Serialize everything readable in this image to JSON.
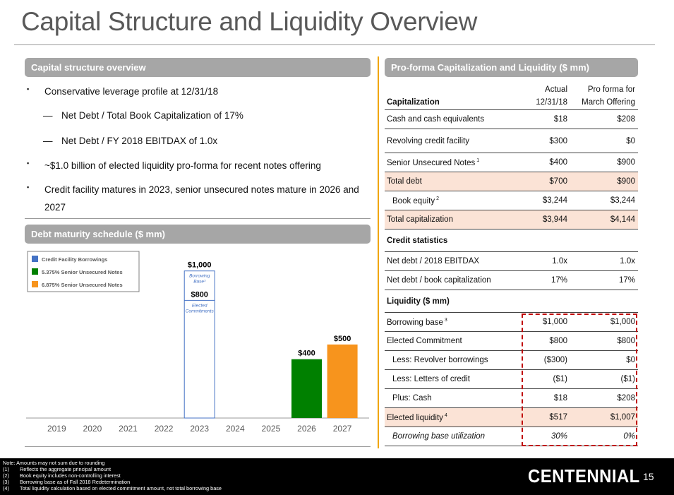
{
  "title": "Capital Structure and Liquidity Overview",
  "left": {
    "cap_header": "Capital structure overview",
    "bullets": [
      {
        "marker": "▪",
        "level": 0,
        "text": "Conservative leverage profile at 12/31/18"
      },
      {
        "marker": "—",
        "level": 1,
        "text": "Net Debt / Total Book Capitalization of 17%"
      },
      {
        "marker": "—",
        "level": 1,
        "text": "Net Debt / FY 2018 EBITDAX of 1.0x"
      },
      {
        "marker": "▪",
        "level": 0,
        "text": "~$1.0 billion of elected liquidity pro-forma for recent notes offering"
      },
      {
        "marker": "▪",
        "level": 0,
        "text": "Credit facility matures in 2023, senior unsecured notes mature in 2026 and 2027"
      }
    ],
    "debt_header": "Debt maturity schedule ($ mm)"
  },
  "chart_data": {
    "type": "bar",
    "categories": [
      "2019",
      "2020",
      "2021",
      "2022",
      "2023",
      "2024",
      "2025",
      "2026",
      "2027"
    ],
    "series": [
      {
        "name": "Credit Facility Borrowings",
        "color": "#4472c4",
        "values": [
          0,
          0,
          0,
          0,
          0,
          0,
          0,
          0,
          0
        ]
      },
      {
        "name": "5.375% Senior Unsecured Notes",
        "color": "#008000",
        "values": [
          0,
          0,
          0,
          0,
          0,
          0,
          0,
          400,
          0
        ]
      },
      {
        "name": "6.875% Senior Unsecured Notes",
        "color": "#f7941d",
        "values": [
          0,
          0,
          0,
          0,
          0,
          0,
          0,
          0,
          500
        ]
      }
    ],
    "data_labels": [
      {
        "category": "2026",
        "value": 400,
        "text": "$400"
      },
      {
        "category": "2027",
        "value": 500,
        "text": "$500"
      }
    ],
    "outline_bars": [
      {
        "category": "2023",
        "value": 1000,
        "value_text": "$1,000",
        "caption": [
          "Borrowing",
          "Base³"
        ]
      },
      {
        "category": "2023",
        "value": 800,
        "value_text": "$800",
        "caption": [
          "Elected",
          "Commitments"
        ]
      }
    ],
    "legend_position": "top-left",
    "grid": false
  },
  "table": {
    "header": "Pro-forma Capitalization and Liquidity ($ mm)",
    "col_head_1": [
      "Actual",
      "12/31/18"
    ],
    "col_head_2": [
      "Pro forma for",
      "March Offering"
    ],
    "first_label": "Capitalization",
    "rows": [
      {
        "label": "Cash and cash equivalents",
        "a": "$18",
        "b": "$208"
      },
      {
        "label": "Revolving credit facility",
        "a": "$300",
        "b": "$0"
      },
      {
        "label": "Senior Unsecured Notes",
        "sup": "1",
        "a": "$400",
        "b": "$900"
      },
      {
        "label": "Total debt",
        "a": "$700",
        "b": "$900"
      },
      {
        "label": "Book equity",
        "sup": "2",
        "a": "$3,244",
        "b": "$3,244"
      },
      {
        "label": "Total capitalization",
        "a": "$3,944",
        "b": "$4,144"
      },
      {
        "label": "Credit statistics",
        "a": "",
        "b": ""
      },
      {
        "label": "Net debt / 2018  EBITDAX",
        "a": "1.0x",
        "b": "1.0x"
      },
      {
        "label": "Net debt / book capitalization",
        "a": "17%",
        "b": "17%"
      },
      {
        "label": "Liquidity ($ mm)",
        "a": "",
        "b": ""
      },
      {
        "label": "Borrowing base",
        "sup": "3",
        "a": "$1,000",
        "b": "$1,000"
      },
      {
        "label": "Elected Commitment",
        "a": "$800",
        "b": "$800"
      },
      {
        "label": "Less: Revolver borrowings",
        "a": "($300)",
        "b": "$0"
      },
      {
        "label": "Less: Letters of credit",
        "a": "($1)",
        "b": "($1)"
      },
      {
        "label": "Plus: Cash",
        "a": "$18",
        "b": "$208"
      },
      {
        "label": "Elected liquidity",
        "sup": "4",
        "a": "$517",
        "b": "$1,007"
      },
      {
        "label": "Borrowing base utilization",
        "a": "30%",
        "b": "0%"
      }
    ],
    "highlight_color": "#fbe3d6",
    "box_color": "#c00000"
  },
  "footer": {
    "notes": [
      {
        "num": "",
        "text": "Note: Amounts may not sum due to rounding"
      },
      {
        "num": "(1)",
        "text": "Reflects the aggregate principal amount"
      },
      {
        "num": "(2)",
        "text": "Book equity includes non-controlling interest"
      },
      {
        "num": "(3)",
        "text": "Borrowing base as of Fall 2018 Redetermination"
      },
      {
        "num": "(4)",
        "text": "Total liquidity calculation based on elected commitment amount, not total borrowing base"
      }
    ],
    "brand": "CENTENNIAL",
    "page_number": "15"
  }
}
